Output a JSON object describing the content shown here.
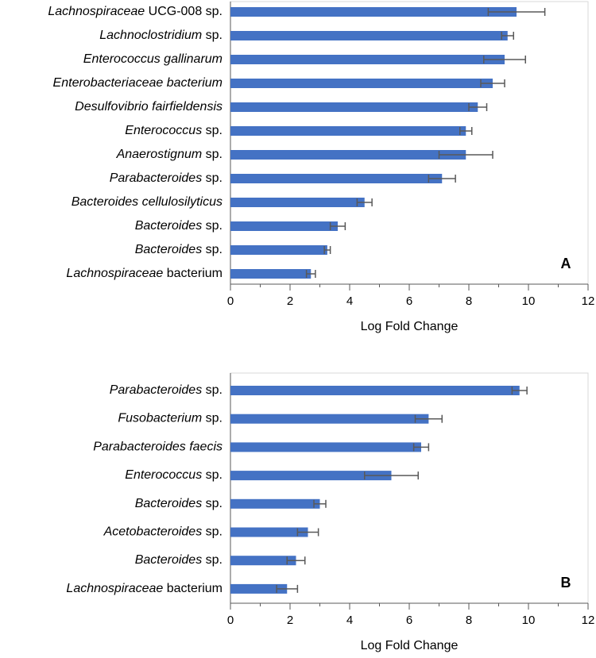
{
  "chart_data": [
    {
      "type": "bar",
      "orientation": "horizontal",
      "panel_label": "A",
      "x_label": "Log Fold Change",
      "categories": [
        "Lachnospiraceae UCG-008 sp.",
        "Lachnoclostridium sp.",
        "Enterococcus gallinarum",
        "Enterobacteriaceae bacterium",
        "Desulfovibrio fairfieldensis",
        "Enterococcus sp.",
        "Anaerostignum sp.",
        "Parabacteroides sp.",
        "Bacteroides cellulosilyticus",
        "Bacteroides sp.",
        "Bacteroides sp.",
        "Lachnospiraceae bacterium"
      ],
      "italic_words": [
        1,
        1,
        2,
        2,
        2,
        1,
        1,
        1,
        2,
        1,
        1,
        1
      ],
      "values": [
        9.6,
        9.3,
        9.2,
        8.8,
        8.3,
        7.9,
        7.9,
        7.1,
        4.5,
        3.6,
        3.25,
        2.7
      ],
      "errors": [
        0.95,
        0.2,
        0.7,
        0.4,
        0.3,
        0.2,
        0.9,
        0.45,
        0.25,
        0.25,
        0.1,
        0.15
      ],
      "color": "#4472c4",
      "error_color": "#595959",
      "xlim": [
        0,
        12
      ],
      "xticks": [
        0,
        2,
        4,
        6,
        8,
        10,
        12
      ],
      "minor_xticks": [
        1,
        3,
        5,
        7,
        9,
        11
      ]
    },
    {
      "type": "bar",
      "orientation": "horizontal",
      "panel_label": "B",
      "x_label": "Log Fold Change",
      "categories": [
        "Parabacteroides sp.",
        "Fusobacterium sp.",
        "Parabacteroides faecis",
        "Enterococcus sp.",
        "Bacteroides sp.",
        "Acetobacteroides sp.",
        "Bacteroides sp.",
        "Lachnospiraceae bacterium"
      ],
      "italic_words": [
        1,
        1,
        2,
        1,
        1,
        1,
        1,
        1
      ],
      "values": [
        9.7,
        6.65,
        6.4,
        5.4,
        3.0,
        2.6,
        2.2,
        1.9
      ],
      "errors": [
        0.25,
        0.45,
        0.25,
        0.9,
        0.2,
        0.35,
        0.3,
        0.35
      ],
      "color": "#4472c4",
      "error_color": "#595959",
      "xlim": [
        0,
        12
      ],
      "xticks": [
        0,
        2,
        4,
        6,
        8,
        10,
        12
      ],
      "minor_xticks": [
        1,
        3,
        5,
        7,
        9,
        11
      ]
    }
  ]
}
